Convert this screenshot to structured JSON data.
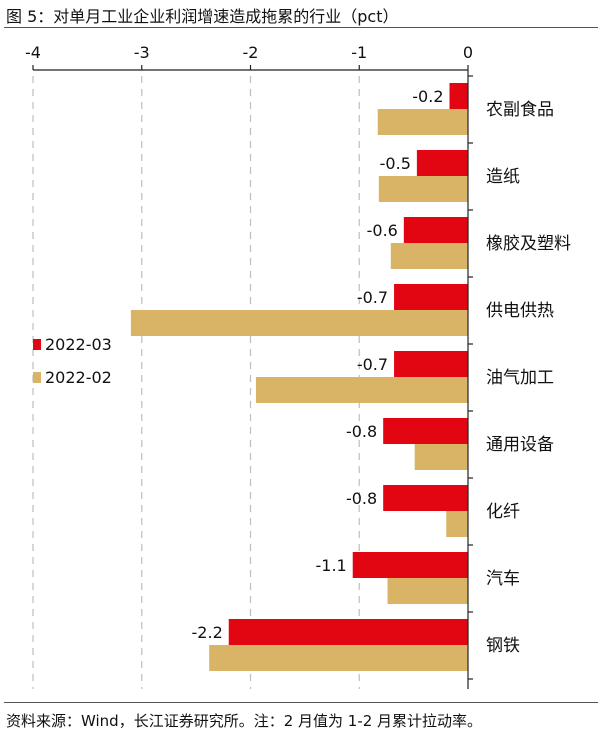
{
  "figure_title": "图 5：对单月工业企业利润增速造成拖累的行业（pct）",
  "source_note": "资料来源：Wind，长江证券研究所。注：2 月值为 1-2 月累计拉动率。",
  "colors": {
    "series_2022_03": "#e20613",
    "series_2022_02": "#d9b466",
    "grid": "#bfbfbf",
    "axis": "#222222"
  },
  "chart_data": {
    "type": "bar",
    "orientation": "horizontal",
    "categories": [
      "农副食品",
      "造纸",
      "橡胶及塑料",
      "供电供热",
      "油气加工",
      "通用设备",
      "化纤",
      "汽车",
      "钢铁"
    ],
    "series": [
      {
        "name": "2022-03",
        "values": [
          -0.17,
          -0.47,
          -0.59,
          -0.68,
          -0.68,
          -0.78,
          -0.78,
          -1.06,
          -2.2
        ],
        "data_labels": [
          "-0.2",
          "-0.5",
          "-0.6",
          "-0.7",
          "-0.7",
          "-0.8",
          "-0.8",
          "-1.1",
          "-2.2"
        ]
      },
      {
        "name": "2022-02",
        "values": [
          -0.83,
          -0.82,
          -0.71,
          -3.1,
          -1.95,
          -0.49,
          -0.2,
          -0.74,
          -2.38
        ]
      }
    ],
    "xlim": [
      -4,
      0
    ],
    "x_ticks": [
      "-4",
      "-3",
      "-2",
      "-1",
      "0"
    ],
    "x_tick_values": [
      -4,
      -3,
      -2,
      -1,
      0
    ],
    "x_axis_position": "top",
    "category_label_side": "right",
    "grid": "vertical dashed",
    "legend_position": "left-center",
    "xlabel": "",
    "ylabel": ""
  }
}
